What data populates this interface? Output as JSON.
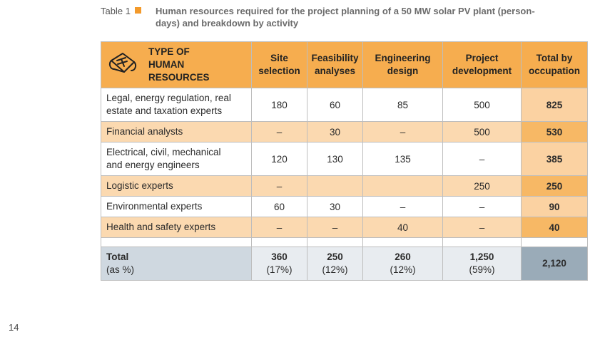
{
  "caption": {
    "label": "Table 1",
    "title": "Human resources required for the project planning of a 50 MW solar PV plant (person-days) and breakdown by activity"
  },
  "table": {
    "headers": {
      "type": "TYPE OF HUMAN RESOURCES",
      "type_lines": [
        "TYPE OF",
        "HUMAN",
        "RESOURCES"
      ],
      "cols": [
        [
          "Site",
          "selection"
        ],
        [
          "Feasibility",
          "analyses"
        ],
        [
          "Engineering",
          "design"
        ],
        [
          "Project",
          "development"
        ],
        [
          "Total by",
          "occupation"
        ]
      ]
    },
    "rows": [
      {
        "label_lines": [
          "Legal, energy regulation, real",
          "estate and taxation experts"
        ],
        "values": [
          "180",
          "60",
          "85",
          "500"
        ],
        "total": "825"
      },
      {
        "label_lines": [
          "Financial analysts"
        ],
        "values": [
          "–",
          "30",
          "–",
          "500"
        ],
        "total": "530"
      },
      {
        "label_lines": [
          "Electrical, civil, mechanical",
          "and energy engineers"
        ],
        "values": [
          "120",
          "130",
          "135",
          "–"
        ],
        "total": "385"
      },
      {
        "label_lines": [
          "Logistic experts"
        ],
        "values": [
          "–",
          "",
          "",
          "250"
        ],
        "total": "250"
      },
      {
        "label_lines": [
          "Environmental experts"
        ],
        "values": [
          "60",
          "30",
          "–",
          "–"
        ],
        "total": "90"
      },
      {
        "label_lines": [
          "Health and safety experts"
        ],
        "values": [
          "–",
          "–",
          "40",
          "–"
        ],
        "total": "40"
      }
    ],
    "total_row": {
      "label": "Total",
      "sublabel": "(as %)",
      "values": [
        {
          "value": "360",
          "pct": "(17%)"
        },
        {
          "value": "250",
          "pct": "(12%)"
        },
        {
          "value": "260",
          "pct": "(12%)"
        },
        {
          "value": "1,250",
          "pct": "(59%)"
        }
      ],
      "grand_total": "2,120"
    }
  },
  "page_number": "14",
  "colors": {
    "accent": "#f39a2b",
    "header_bg": "#f6ad4f",
    "alt_row": "#fbd9b0",
    "total_bg": "#e8ecf0",
    "grand_total_bg": "#9aabb8"
  },
  "icons": {
    "header_icon": "scroll-document-icon"
  }
}
